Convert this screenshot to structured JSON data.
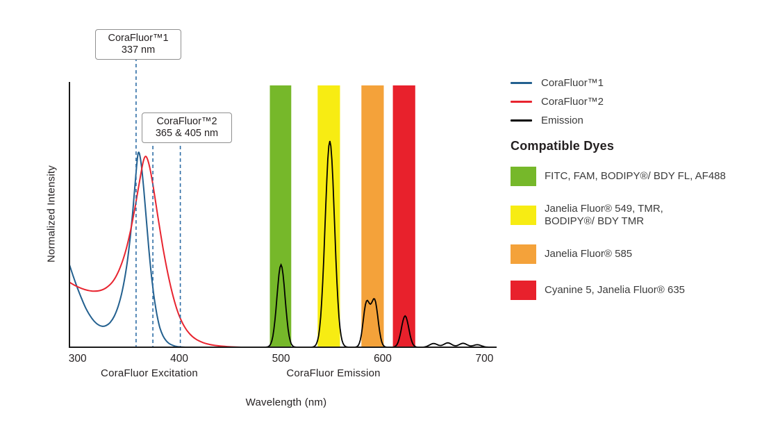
{
  "figure": {
    "y_axis_label": "Normalized Intensity",
    "excitation_label": "CoraFluor Excitation",
    "emission_label": "CoraFluor Emission",
    "x_axis_label": "Wavelength (nm)"
  },
  "callouts": [
    {
      "title": "CoraFluor™1",
      "value": "337 nm"
    },
    {
      "title": "CoraFluor™2",
      "value": "365 & 405 nm"
    }
  ],
  "legend": {
    "series": [
      {
        "label": "CoraFluor™1",
        "color": "#23608F"
      },
      {
        "label": "CoraFluor™2",
        "color": "#E8242F"
      },
      {
        "label": "Emission",
        "color": "#000000"
      }
    ],
    "dyes_heading": "Compatible Dyes",
    "dyes": [
      {
        "label": "FITC, FAM, BODIPY®/ BDY FL, AF488",
        "color": "#76B82A"
      },
      {
        "label": "Janelia Fluor® 549, TMR,\nBODIPY®/ BDY TMR",
        "color": "#F7EC13"
      },
      {
        "label": "Janelia Fluor® 585",
        "color": "#F4A23A"
      },
      {
        "label": "Cyanine 5, Janelia Fluor® 635",
        "color": "#E8212C"
      }
    ]
  },
  "chart_data": {
    "type": "line",
    "title": "",
    "xlabel": "Wavelength (nm)",
    "ylabel": "Normalized Intensity",
    "xlim": [
      292,
      712
    ],
    "ylim": [
      0,
      1.28
    ],
    "x_ticks": [
      300,
      400,
      500,
      600,
      700
    ],
    "grid": false,
    "legend_position": "right",
    "group_labels": [
      {
        "text": "CoraFluor Excitation",
        "region_nm": [
          300,
          430
        ]
      },
      {
        "text": "CoraFluor Emission",
        "region_nm": [
          480,
          650
        ]
      }
    ],
    "bands": [
      {
        "x0": 489,
        "x1": 510,
        "color": "#76B82A",
        "dye": "FITC, FAM, BODIPY®/ BDY FL, AF488"
      },
      {
        "x0": 536,
        "x1": 558,
        "color": "#F7EC13",
        "dye": "Janelia Fluor® 549, TMR, BODIPY®/ BDY TMR"
      },
      {
        "x0": 579,
        "x1": 601,
        "color": "#F4A23A",
        "dye": "Janelia Fluor® 585"
      },
      {
        "x0": 610,
        "x1": 632,
        "color": "#E8212C",
        "dye": "Cyanine 5, Janelia Fluor® 635"
      }
    ],
    "annotations": [
      {
        "label": "CoraFluor™1 337 nm",
        "lines_nm": [
          357.5
        ],
        "color": "#2E6DA5"
      },
      {
        "label": "CoraFluor™2 365 & 405 nm",
        "lines_nm": [
          374,
          401
        ],
        "color": "#2E6DA5"
      }
    ],
    "series": [
      {
        "name": "CoraFluor™1",
        "role": "excitation",
        "color": "#23608F",
        "points": [
          [
            292,
            0.4
          ],
          [
            296,
            0.34
          ],
          [
            300,
            0.285
          ],
          [
            304,
            0.235
          ],
          [
            308,
            0.19
          ],
          [
            312,
            0.155
          ],
          [
            316,
            0.128
          ],
          [
            320,
            0.11
          ],
          [
            324,
            0.102
          ],
          [
            328,
            0.105
          ],
          [
            332,
            0.12
          ],
          [
            336,
            0.15
          ],
          [
            340,
            0.2
          ],
          [
            344,
            0.275
          ],
          [
            348,
            0.385
          ],
          [
            351,
            0.5
          ],
          [
            354,
            0.645
          ],
          [
            356,
            0.76
          ],
          [
            358,
            0.875
          ],
          [
            359.5,
            0.94
          ],
          [
            361,
            0.935
          ],
          [
            363,
            0.87
          ],
          [
            365,
            0.77
          ],
          [
            367,
            0.655
          ],
          [
            369,
            0.535
          ],
          [
            371,
            0.425
          ],
          [
            373,
            0.33
          ],
          [
            375,
            0.25
          ],
          [
            377,
            0.185
          ],
          [
            379,
            0.133
          ],
          [
            381,
            0.093
          ],
          [
            384,
            0.055
          ],
          [
            387,
            0.032
          ],
          [
            390,
            0.018
          ],
          [
            394,
            0.008
          ],
          [
            398,
            0.003
          ],
          [
            403,
            0.001
          ],
          [
            408,
            0
          ],
          [
            414,
            0
          ]
        ]
      },
      {
        "name": "CoraFluor™2",
        "role": "excitation",
        "color": "#E8242F",
        "points": [
          [
            292,
            0.315
          ],
          [
            298,
            0.298
          ],
          [
            304,
            0.285
          ],
          [
            310,
            0.276
          ],
          [
            316,
            0.272
          ],
          [
            322,
            0.275
          ],
          [
            328,
            0.288
          ],
          [
            334,
            0.315
          ],
          [
            339,
            0.355
          ],
          [
            344,
            0.415
          ],
          [
            348,
            0.48
          ],
          [
            352,
            0.565
          ],
          [
            356,
            0.665
          ],
          [
            359,
            0.75
          ],
          [
            362,
            0.835
          ],
          [
            364.5,
            0.9
          ],
          [
            366.5,
            0.925
          ],
          [
            368.5,
            0.915
          ],
          [
            371,
            0.87
          ],
          [
            374,
            0.79
          ],
          [
            377,
            0.695
          ],
          [
            380,
            0.6
          ],
          [
            384,
            0.48
          ],
          [
            388,
            0.375
          ],
          [
            392,
            0.285
          ],
          [
            396,
            0.21
          ],
          [
            400,
            0.152
          ],
          [
            405,
            0.1
          ],
          [
            410,
            0.066
          ],
          [
            416,
            0.04
          ],
          [
            423,
            0.023
          ],
          [
            430,
            0.013
          ],
          [
            438,
            0.007
          ],
          [
            447,
            0.003
          ],
          [
            456,
            0.001
          ],
          [
            465,
            0
          ],
          [
            475,
            0
          ]
        ]
      },
      {
        "name": "Emission",
        "role": "emission",
        "color": "#000000",
        "sample_range_nm": [
          470,
          712
        ],
        "gaussian_peaks": [
          {
            "center": 500,
            "height": 0.4,
            "sigma": 4.0
          },
          {
            "center": 548,
            "height": 1.0,
            "sigma": 4.6
          },
          {
            "center": 584,
            "height": 0.21,
            "sigma": 3.2
          },
          {
            "center": 592,
            "height": 0.225,
            "sigma": 3.4
          },
          {
            "center": 622,
            "height": 0.152,
            "sigma": 3.6
          },
          {
            "center": 650,
            "height": 0.018,
            "sigma": 4.0
          },
          {
            "center": 664,
            "height": 0.021,
            "sigma": 4.0
          },
          {
            "center": 679,
            "height": 0.019,
            "sigma": 4.0
          },
          {
            "center": 693,
            "height": 0.012,
            "sigma": 4.0
          }
        ]
      }
    ]
  }
}
